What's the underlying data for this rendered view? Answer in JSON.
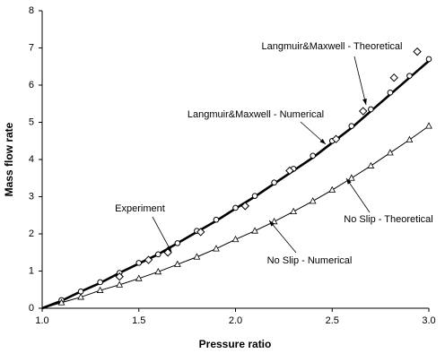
{
  "chart_data": {
    "type": "line",
    "xlabel": "Pressure ratio",
    "ylabel": "Mass flow rate",
    "xlim": [
      1,
      3
    ],
    "ylim": [
      0,
      8
    ],
    "xticks": [
      {
        "value": 1,
        "label": "1.0"
      },
      1.5,
      {
        "value": 2,
        "label": "2.0"
      },
      2.5,
      {
        "value": 3,
        "label": "3.0"
      }
    ],
    "yticks": [
      0,
      1,
      2,
      3,
      4,
      5,
      6,
      7,
      8
    ],
    "grid": false,
    "series": [
      {
        "name": "Langmuir&Maxwell - Theoretical",
        "color": "#000000",
        "marker": "line",
        "width": 2.6,
        "x": [
          1.0,
          1.1,
          1.2,
          1.3,
          1.4,
          1.5,
          1.6,
          1.7,
          1.8,
          1.9,
          2.0,
          2.1,
          2.2,
          2.3,
          2.4,
          2.5,
          2.6,
          2.7,
          2.8,
          2.9,
          3.0
        ],
        "values": [
          0,
          0.2,
          0.45,
          0.68,
          0.95,
          1.2,
          1.45,
          1.75,
          2.05,
          2.35,
          2.68,
          3.0,
          3.35,
          3.7,
          4.05,
          4.45,
          4.85,
          5.3,
          5.75,
          6.2,
          6.65
        ]
      },
      {
        "name": "Langmuir&Maxwell - Numerical",
        "color": "#000000",
        "marker": "circle",
        "x": [
          1.1,
          1.2,
          1.3,
          1.4,
          1.5,
          1.6,
          1.7,
          1.8,
          1.9,
          2.0,
          2.1,
          2.2,
          2.3,
          2.4,
          2.5,
          2.6,
          2.7,
          2.8,
          2.9,
          3.0
        ],
        "values": [
          0.22,
          0.45,
          0.7,
          0.95,
          1.22,
          1.45,
          1.75,
          2.08,
          2.38,
          2.7,
          3.02,
          3.38,
          3.75,
          4.1,
          4.5,
          4.9,
          5.35,
          5.8,
          6.25,
          6.7
        ]
      },
      {
        "name": "Experiment",
        "color": "#000000",
        "marker": "diamond",
        "x": [
          1.4,
          1.55,
          1.65,
          1.82,
          2.05,
          2.28,
          2.52,
          2.66,
          2.82,
          2.94
        ],
        "values": [
          0.85,
          1.3,
          1.5,
          2.05,
          2.75,
          3.7,
          4.55,
          5.3,
          6.2,
          6.9
        ]
      },
      {
        "name": "No Slip - Theoretical",
        "color": "#000000",
        "marker": "line",
        "width": 1,
        "x": [
          1.0,
          1.1,
          1.2,
          1.3,
          1.4,
          1.5,
          1.6,
          1.7,
          1.8,
          1.9,
          2.0,
          2.1,
          2.2,
          2.3,
          2.4,
          2.5,
          2.6,
          2.7,
          2.8,
          2.9,
          3.0
        ],
        "values": [
          0,
          0.15,
          0.3,
          0.48,
          0.63,
          0.8,
          0.98,
          1.18,
          1.38,
          1.6,
          1.85,
          2.08,
          2.33,
          2.6,
          2.88,
          3.18,
          3.5,
          3.83,
          4.18,
          4.53,
          4.9
        ]
      },
      {
        "name": "No Slip - Numerical",
        "color": "#000000",
        "marker": "triangle",
        "x": [
          1.1,
          1.2,
          1.3,
          1.4,
          1.5,
          1.6,
          1.7,
          1.8,
          1.9,
          2.0,
          2.1,
          2.2,
          2.3,
          2.4,
          2.5,
          2.6,
          2.7,
          2.8,
          2.9,
          3.0
        ],
        "values": [
          0.15,
          0.3,
          0.48,
          0.63,
          0.8,
          0.98,
          1.18,
          1.38,
          1.6,
          1.85,
          2.08,
          2.33,
          2.6,
          2.88,
          3.18,
          3.5,
          3.83,
          4.18,
          4.53,
          4.9
        ]
      }
    ]
  }
}
